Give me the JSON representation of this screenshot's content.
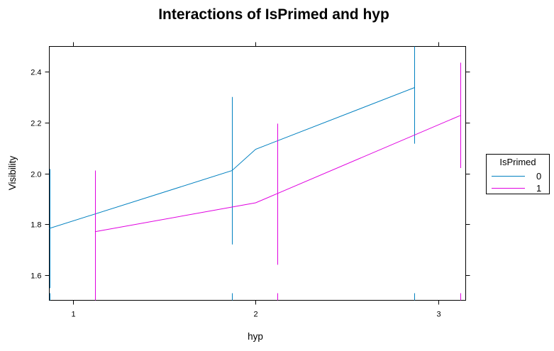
{
  "chart_data": {
    "type": "line",
    "title": "Interactions of IsPrimed and hyp",
    "xlabel": "hyp",
    "ylabel": "Visibility",
    "x_ticks": [
      "1",
      "2",
      "3"
    ],
    "y_ticks": [
      "1.6",
      "1.8",
      "2.0",
      "2.2",
      "2.4"
    ],
    "xlim": [
      0.87,
      3.15
    ],
    "ylim": [
      1.5,
      2.5
    ],
    "legend": {
      "title": "IsPrimed",
      "position": "right"
    },
    "series": [
      {
        "name": "0",
        "color": "#0080c0",
        "x": [
          0.87,
          1.87,
          2.87
        ],
        "y": [
          1.783,
          2.011,
          2.338
        ],
        "error_lower": [
          1.548,
          1.72,
          2.117
        ],
        "error_upper": [
          2.017,
          2.301,
          2.56
        ],
        "extra_points": [
          {
            "x": 2.0,
            "y": 2.095
          }
        ]
      },
      {
        "name": "1",
        "color": "#e000e0",
        "x": [
          1.12,
          2.12,
          3.12
        ],
        "y": [
          1.77,
          1.921,
          2.228
        ],
        "error_lower": [
          1.5,
          1.64,
          2.021
        ],
        "error_upper": [
          2.011,
          2.196,
          2.436
        ],
        "extra_points": [
          {
            "x": 2.0,
            "y": 1.884
          }
        ]
      }
    ],
    "rug": [
      {
        "series": "0",
        "x": [
          0.87,
          1.87,
          2.87
        ]
      },
      {
        "series": "1",
        "x": [
          1.12,
          2.12,
          3.12
        ]
      }
    ]
  }
}
